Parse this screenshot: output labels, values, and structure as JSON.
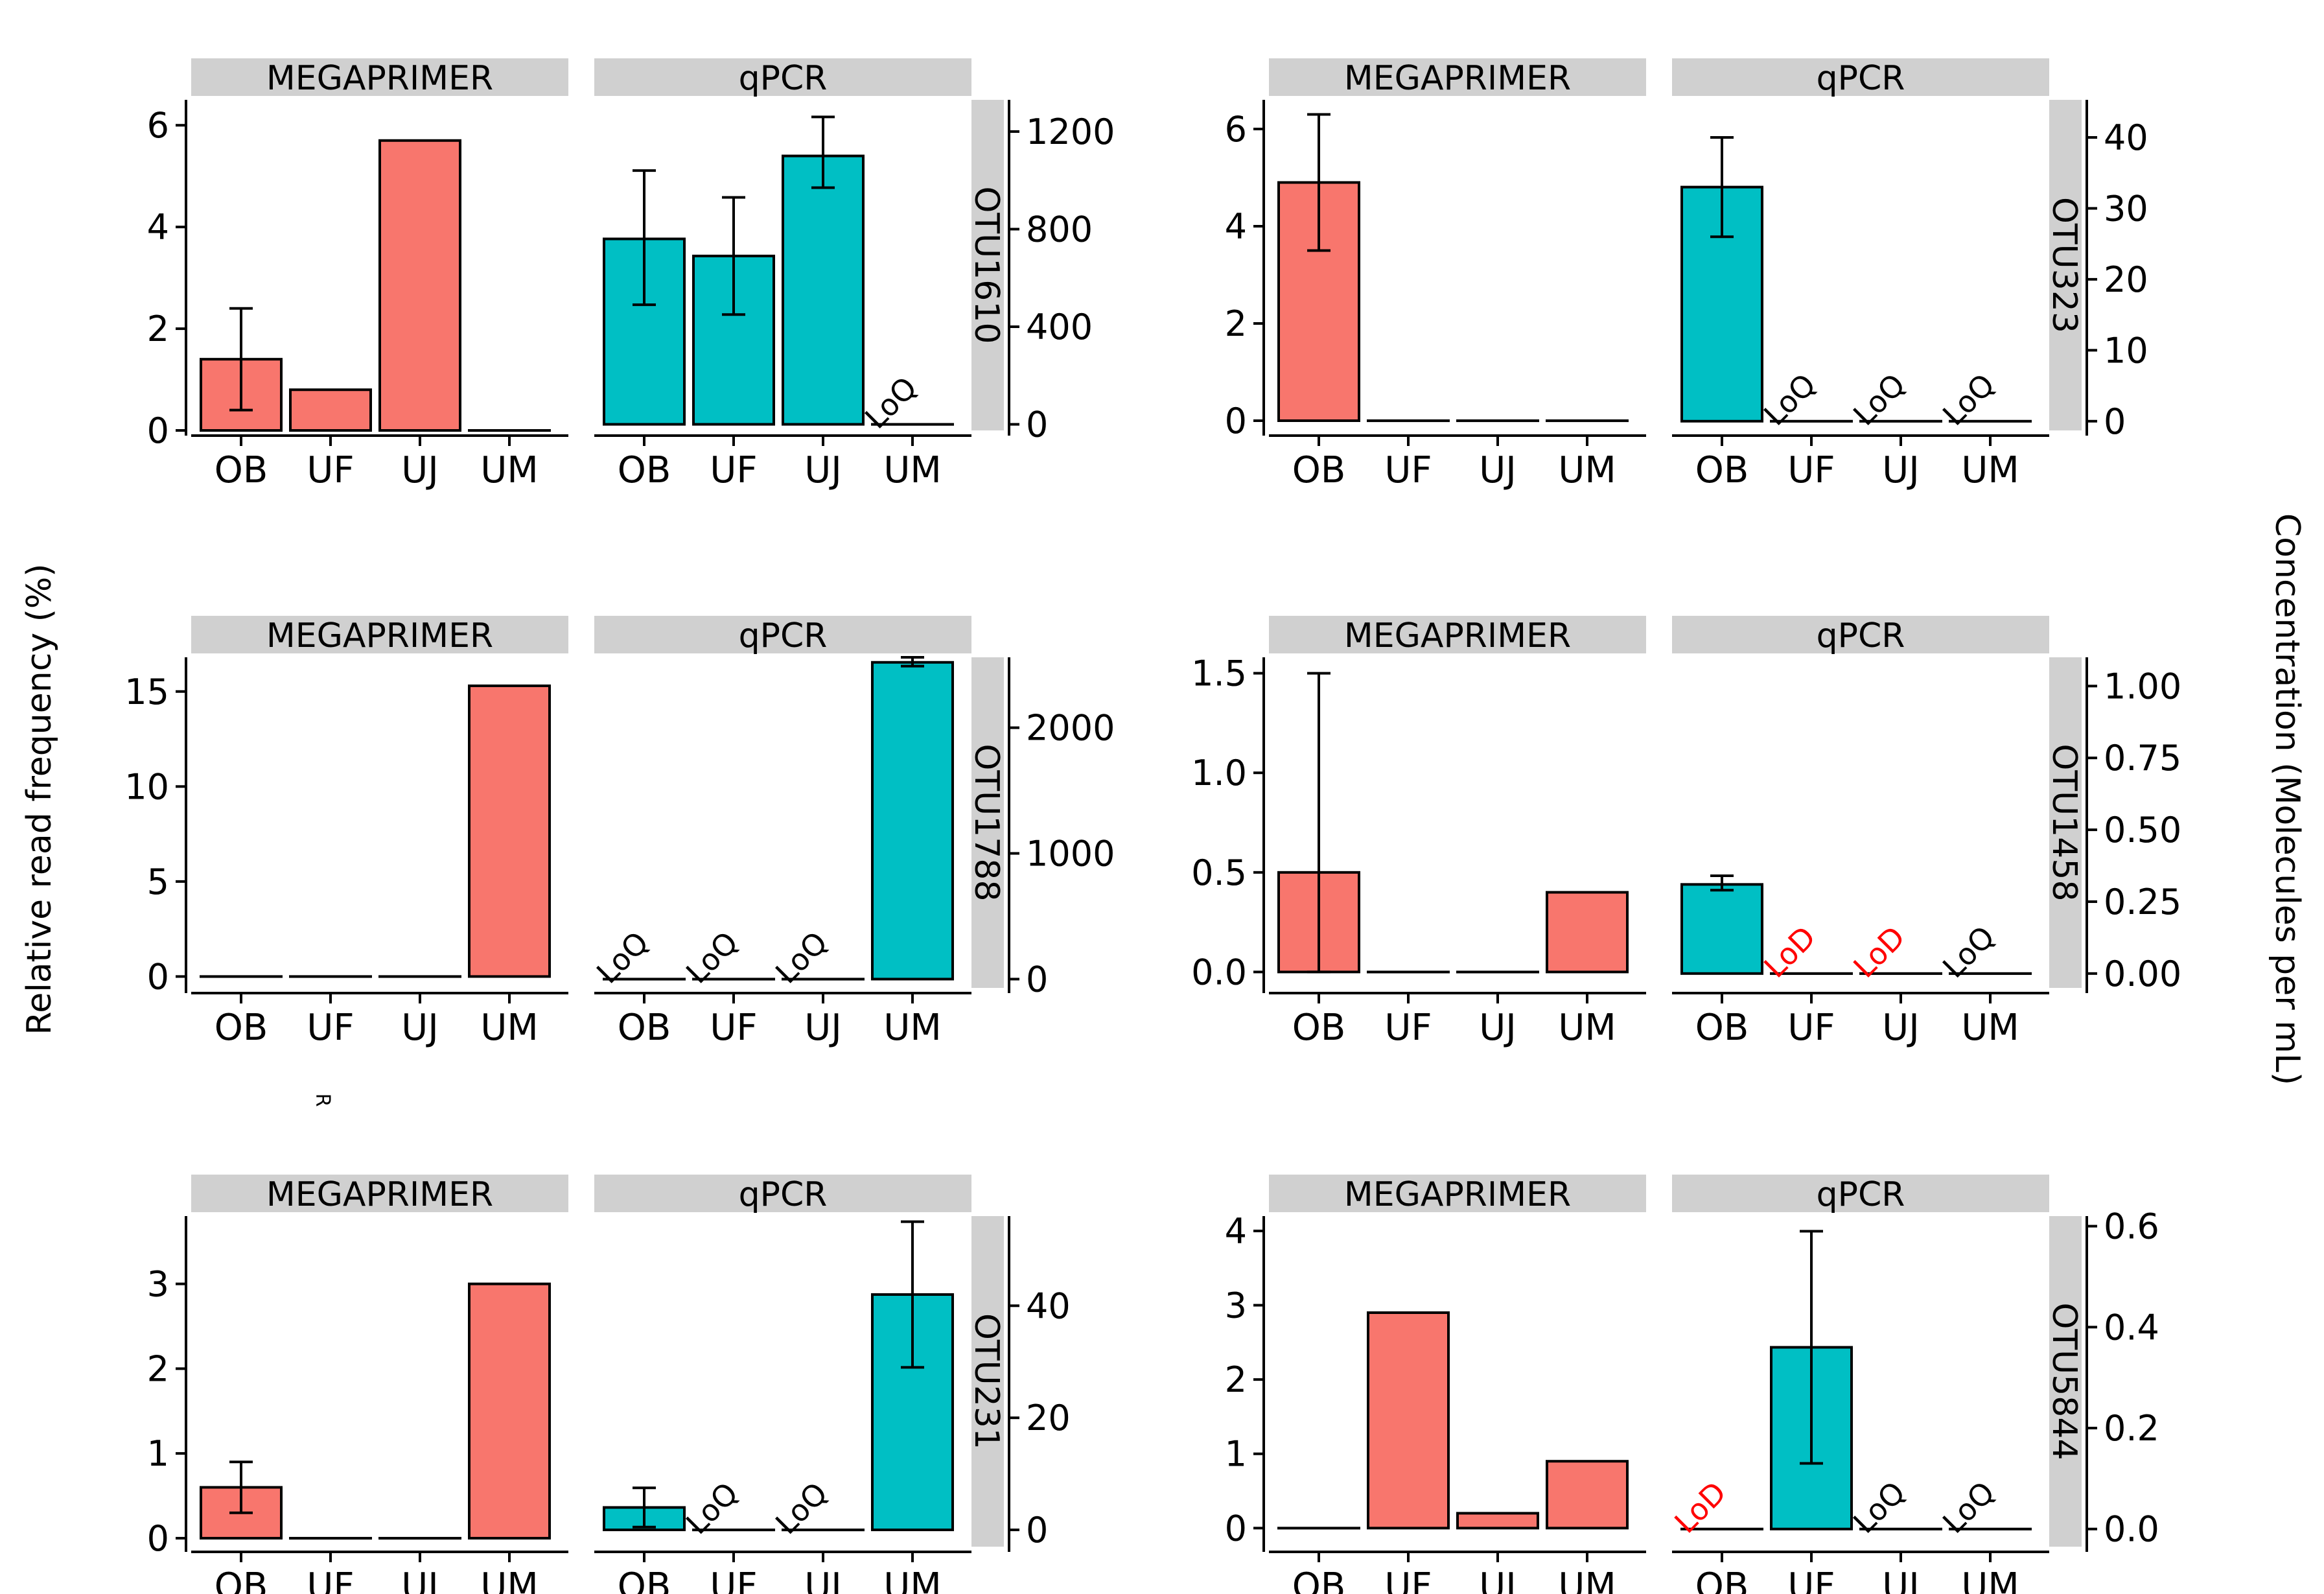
{
  "ylabel_left": "Relative read frequency (%)",
  "ylabel_right": "Concentration (Molecules per mL)",
  "stray_label": "R",
  "colors": {
    "megaprimer": "#F8766D",
    "qpcr": "#00BFC4",
    "strip": "#D0D0D0",
    "lod": "#FF0000",
    "ink": "#000000"
  },
  "chart_data": [
    {
      "type": "bar",
      "otu": "OTU1610",
      "facets": [
        "MEGAPRIMER",
        "qPCR"
      ],
      "categories": [
        "OB",
        "UF",
        "UJ",
        "UM"
      ],
      "megaprimer": {
        "ylim": [
          0,
          6.5
        ],
        "ticks": [
          0,
          2,
          4,
          6
        ],
        "tick_labels": [
          "0",
          "2",
          "4",
          "6"
        ],
        "values": [
          1.4,
          0.8,
          5.7,
          0
        ],
        "err": [
          [
            0.4,
            2.4
          ],
          null,
          null,
          null
        ]
      },
      "qpcr": {
        "ylim": [
          -25,
          1330
        ],
        "ticks": [
          0,
          400,
          800,
          1200
        ],
        "tick_labels": [
          "0",
          "400",
          "800",
          "1200"
        ],
        "values": [
          760,
          690,
          1100,
          0
        ],
        "err": [
          [
            490,
            1040
          ],
          [
            450,
            930
          ],
          [
            970,
            1260
          ],
          null
        ],
        "notes": [
          null,
          null,
          null,
          "LoQ"
        ]
      }
    },
    {
      "type": "bar",
      "otu": "OTU323",
      "facets": [
        "MEGAPRIMER",
        "qPCR"
      ],
      "categories": [
        "OB",
        "UF",
        "UJ",
        "UM"
      ],
      "megaprimer": {
        "ylim": [
          -0.2,
          6.6
        ],
        "ticks": [
          0,
          2,
          4,
          6
        ],
        "tick_labels": [
          "0",
          "2",
          "4",
          "6"
        ],
        "values": [
          4.9,
          0,
          0,
          0
        ],
        "err": [
          [
            3.5,
            6.3
          ],
          null,
          null,
          null
        ]
      },
      "qpcr": {
        "ylim": [
          -1.3,
          45.3
        ],
        "ticks": [
          0,
          10,
          20,
          30,
          40
        ],
        "tick_labels": [
          "0",
          "10",
          "20",
          "30",
          "40"
        ],
        "values": [
          33,
          0,
          0,
          0
        ],
        "err": [
          [
            26,
            40
          ],
          null,
          null,
          null
        ],
        "notes": [
          null,
          "LoQ",
          "LoQ",
          "LoQ"
        ]
      }
    },
    {
      "type": "bar",
      "otu": "OTU1788",
      "facets": [
        "MEGAPRIMER",
        "qPCR"
      ],
      "categories": [
        "OB",
        "UF",
        "UJ",
        "UM"
      ],
      "megaprimer": {
        "ylim": [
          -0.6,
          16.8
        ],
        "ticks": [
          0,
          5,
          10,
          15
        ],
        "tick_labels": [
          "0",
          "5",
          "10",
          "15"
        ],
        "values": [
          0,
          0,
          0,
          15.3
        ],
        "err": [
          null,
          null,
          null,
          null
        ]
      },
      "qpcr": {
        "ylim": [
          -70,
          2560
        ],
        "ticks": [
          0,
          1000,
          2000
        ],
        "tick_labels": [
          "0",
          "1000",
          "2000"
        ],
        "values": [
          0,
          0,
          0,
          2520
        ],
        "err": [
          null,
          null,
          null,
          [
            2490,
            2560
          ]
        ],
        "notes": [
          "LoQ",
          "LoQ",
          "LoQ",
          null
        ]
      }
    },
    {
      "type": "bar",
      "otu": "OTU1458",
      "facets": [
        "MEGAPRIMER",
        "qPCR"
      ],
      "categories": [
        "OB",
        "UF",
        "UJ",
        "UM"
      ],
      "megaprimer": {
        "ylim": [
          -0.08,
          1.58
        ],
        "ticks": [
          0,
          0.5,
          1.0,
          1.5
        ],
        "tick_labels": [
          "0.0",
          "0.5",
          "1.0",
          "1.5"
        ],
        "values": [
          0.5,
          0,
          0,
          0.4
        ],
        "err": [
          [
            0,
            1.5
          ],
          null,
          null,
          null
        ]
      },
      "qpcr": {
        "ylim": [
          -0.05,
          1.1
        ],
        "ticks": [
          0,
          0.25,
          0.5,
          0.75,
          1.0
        ],
        "tick_labels": [
          "0.00",
          "0.25",
          "0.50",
          "0.75",
          "1.00"
        ],
        "values": [
          0.31,
          0,
          0,
          0
        ],
        "err": [
          [
            0.29,
            0.34
          ],
          null,
          null,
          null
        ],
        "notes": [
          null,
          "LoD",
          "LoD",
          "LoQ"
        ]
      }
    },
    {
      "type": "bar",
      "otu": "OTU231",
      "facets": [
        "MEGAPRIMER",
        "qPCR"
      ],
      "categories": [
        "OB",
        "UF",
        "UJ",
        "UM"
      ],
      "megaprimer": {
        "ylim": [
          -0.1,
          3.8
        ],
        "ticks": [
          0,
          1,
          2,
          3
        ],
        "tick_labels": [
          "0",
          "1",
          "2",
          "3"
        ],
        "values": [
          0.6,
          0,
          0,
          3.0
        ],
        "err": [
          [
            0.3,
            0.9
          ],
          null,
          null,
          null
        ]
      },
      "qpcr": {
        "ylim": [
          -3,
          56
        ],
        "ticks": [
          0,
          20,
          40
        ],
        "tick_labels": [
          "0",
          "20",
          "40"
        ],
        "values": [
          4,
          0,
          0,
          42
        ],
        "err": [
          [
            0.5,
            7.5
          ],
          null,
          null,
          [
            29,
            55
          ]
        ],
        "notes": [
          null,
          "LoQ",
          "LoQ",
          null
        ]
      }
    },
    {
      "type": "bar",
      "otu": "OTU5844",
      "facets": [
        "MEGAPRIMER",
        "qPCR"
      ],
      "categories": [
        "OB",
        "UF",
        "UJ",
        "UM"
      ],
      "megaprimer": {
        "ylim": [
          -0.25,
          4.2
        ],
        "ticks": [
          0,
          1,
          2,
          3,
          4
        ],
        "tick_labels": [
          "0",
          "1",
          "2",
          "3",
          "4"
        ],
        "values": [
          0,
          2.9,
          0.2,
          0.9
        ],
        "err": [
          null,
          null,
          null,
          null
        ]
      },
      "qpcr": {
        "ylim": [
          -0.035,
          0.62
        ],
        "ticks": [
          0,
          0.2,
          0.4,
          0.6
        ],
        "tick_labels": [
          "0.0",
          "0.2",
          "0.4",
          "0.6"
        ],
        "values": [
          0,
          0.36,
          0,
          0
        ],
        "err": [
          null,
          [
            0.13,
            0.59
          ],
          null,
          null
        ],
        "notes": [
          "LoD",
          null,
          "LoQ",
          "LoQ"
        ]
      }
    }
  ]
}
